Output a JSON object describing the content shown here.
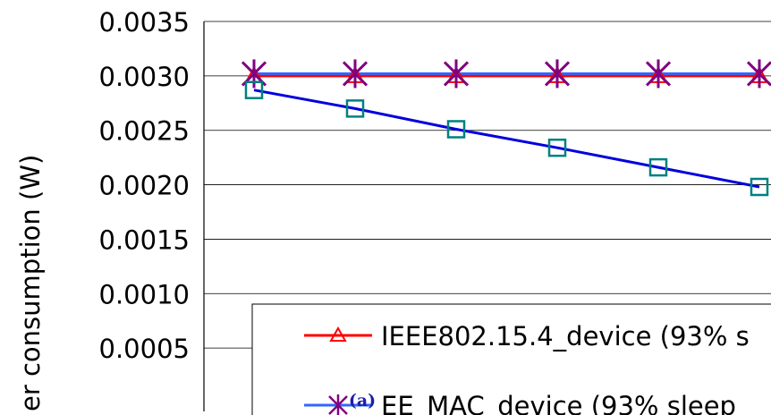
{
  "chart_data": {
    "type": "line",
    "xlabel": "",
    "ylabel": "er consumption (W)",
    "ylim": [
      0,
      0.0035
    ],
    "y_ticks": [
      "0.0035",
      "0.0030",
      "0.0025",
      "0.0020",
      "0.0015",
      "0.0010",
      "0.0005"
    ],
    "y_tick_values": [
      0.0035,
      0.003,
      0.0025,
      0.002,
      0.0015,
      0.001,
      0.0005
    ],
    "x": [
      1,
      2,
      3,
      4,
      5,
      6
    ],
    "grid": true,
    "legend_position": "bottom",
    "series": [
      {
        "name": "IEEE802.15.4_device (93% s",
        "color": "#ff0000",
        "marker": "triangle",
        "values": [
          0.003,
          0.003,
          0.003,
          0.003,
          0.003,
          0.003
        ]
      },
      {
        "name": "EE_MAC_device (93% sleep",
        "color": "#3366ff",
        "marker_color": "#800080",
        "marker": "star",
        "values": [
          0.00302,
          0.00302,
          0.00302,
          0.00302,
          0.00302,
          0.00302
        ]
      },
      {
        "name": "",
        "color": "#0000dd",
        "marker_color": "#008080",
        "marker": "square",
        "values": [
          0.00287,
          0.0027,
          0.00251,
          0.00234,
          0.00216,
          0.00198
        ]
      }
    ]
  },
  "caption": "(a)"
}
